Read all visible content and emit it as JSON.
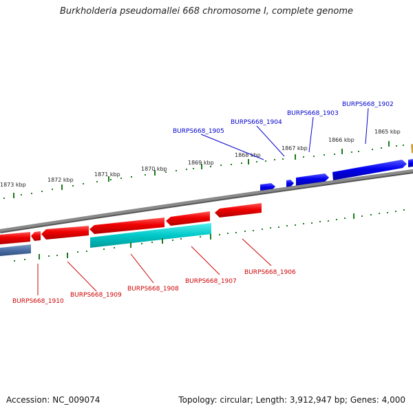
{
  "title": "Burkholderia pseudomallei 668 chromosome I, complete genome",
  "accession_text": "Accession: NC_009074",
  "info_text": "Topology: circular; Length: 3,912,947 bp; Genes: 4,000",
  "colors": {
    "forward_gene": "#0000ee",
    "reverse_gene": "#ee0000",
    "reverse_other": "#00c8c8",
    "backbone": "#808080",
    "ticks": "#1a7a1a",
    "forward_label": "#0000cc",
    "reverse_label": "#cc0000"
  },
  "ticks": {
    "outer": [
      "1873 kbp",
      "1872 kbp",
      "1871 kbp",
      "1870 kbp",
      "1869 kbp",
      "1868 kbp",
      "1867 kbp",
      "1866 kbp",
      "1865 kbp"
    ]
  },
  "forward_labels": [
    "BURPS668_1905",
    "BURPS668_1904",
    "BURPS668_1903",
    "BURPS668_1902"
  ],
  "reverse_labels": [
    "BURPS668_1906",
    "BURPS668_1907",
    "BURPS668_1908",
    "BURPS668_1909",
    "BURPS668_1910"
  ]
}
